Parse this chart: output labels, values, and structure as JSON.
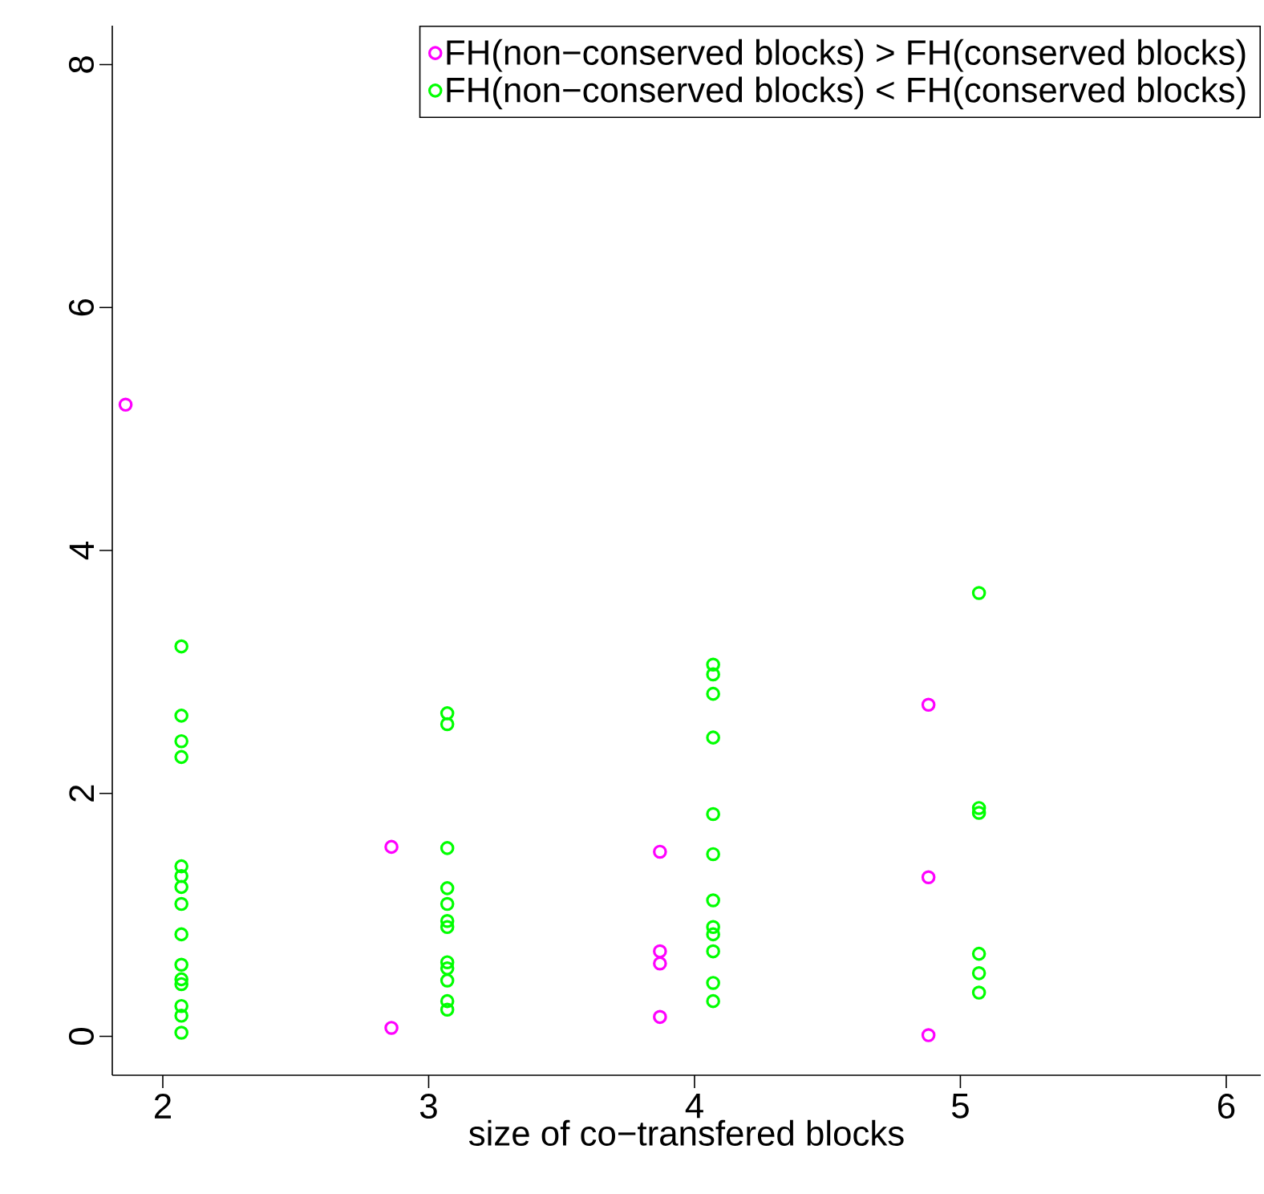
{
  "chart_data": {
    "type": "scatter",
    "xlabel": "size of co−transfered blocks",
    "xlim": [
      1.81,
      6.13
    ],
    "ylim": [
      -0.32,
      8.32
    ],
    "xticks": [
      2,
      3,
      4,
      5,
      6
    ],
    "yticks": [
      0,
      2,
      4,
      6,
      8
    ],
    "grid": false,
    "legend": "top right",
    "marker": "circle",
    "series": [
      {
        "name": "FH(non−conserved blocks) > FH(conserved blocks)",
        "color": "#ff00ff",
        "x": [
          1.86,
          2.86,
          2.86,
          3.87,
          3.87,
          3.87,
          3.87,
          4.88,
          4.88,
          4.88
        ],
        "values": [
          5.2,
          1.56,
          0.07,
          1.52,
          0.7,
          0.6,
          0.16,
          2.73,
          1.31,
          0.01
        ]
      },
      {
        "name": "FH(non−conserved blocks) < FH(conserved blocks)",
        "color": "#00ff00",
        "x": [
          2.07,
          2.07,
          2.07,
          2.07,
          2.07,
          2.07,
          2.07,
          2.07,
          2.07,
          2.07,
          2.07,
          2.07,
          2.07,
          2.07,
          2.07,
          3.07,
          3.07,
          3.07,
          3.07,
          3.07,
          3.07,
          3.07,
          3.07,
          3.07,
          3.07,
          3.07,
          3.07,
          4.07,
          4.07,
          4.07,
          4.07,
          4.07,
          4.07,
          4.07,
          4.07,
          4.07,
          4.07,
          4.07,
          4.07,
          5.07,
          5.07,
          5.07,
          5.07,
          5.07,
          5.07
        ],
        "values": [
          3.21,
          2.64,
          2.43,
          2.3,
          1.4,
          1.32,
          1.23,
          1.09,
          0.84,
          0.59,
          0.47,
          0.43,
          0.25,
          0.17,
          0.03,
          2.66,
          2.57,
          1.55,
          1.22,
          1.09,
          0.95,
          0.9,
          0.61,
          0.56,
          0.46,
          0.29,
          0.22,
          3.06,
          2.98,
          2.82,
          2.46,
          1.83,
          1.5,
          1.12,
          0.9,
          0.84,
          0.7,
          0.44,
          0.29,
          3.65,
          1.88,
          1.84,
          0.68,
          0.52,
          0.36
        ]
      }
    ]
  }
}
